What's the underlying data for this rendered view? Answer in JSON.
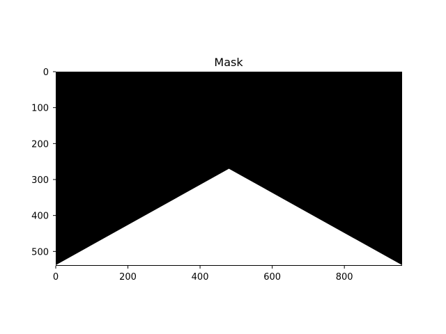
{
  "chart_data": {
    "type": "heatmap",
    "title": "Mask",
    "image_width": 960,
    "image_height": 540,
    "xlim": [
      0,
      960
    ],
    "ylim": [
      540,
      0
    ],
    "x_ticks": [
      0,
      200,
      400,
      600,
      800
    ],
    "y_ticks": [
      0,
      100,
      200,
      300,
      400,
      500
    ],
    "colormap": "gray",
    "background_value": 0,
    "mask_value": 1,
    "background_color": "#000000",
    "mask_color": "#ffffff",
    "mask_polygon": [
      {
        "x": 0,
        "y": 538
      },
      {
        "x": 480,
        "y": 270
      },
      {
        "x": 960,
        "y": 538
      }
    ],
    "grid": false
  }
}
